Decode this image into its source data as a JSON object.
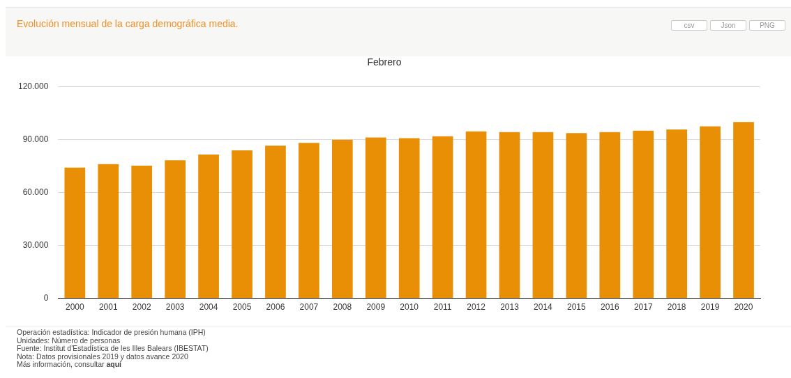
{
  "chart_data": {
    "type": "bar",
    "title": "Evolución mensual de la carga demográfica media.",
    "subtitle": "Febrero",
    "categories": [
      "2000",
      "2001",
      "2002",
      "2003",
      "2004",
      "2005",
      "2006",
      "2007",
      "2008",
      "2009",
      "2010",
      "2011",
      "2012",
      "2013",
      "2014",
      "2015",
      "2016",
      "2017",
      "2018",
      "2019",
      "2020"
    ],
    "values": [
      74200,
      76200,
      75300,
      78300,
      81600,
      84000,
      86600,
      88200,
      90000,
      91300,
      90900,
      92000,
      94700,
      94300,
      94300,
      93800,
      94300,
      95100,
      95800,
      97600,
      100100
    ],
    "color": "#e98f05",
    "ylim": [
      0,
      120000
    ],
    "yticks": [
      {
        "value": 0,
        "label": "0"
      },
      {
        "value": 30000,
        "label": "30.000"
      },
      {
        "value": 60000,
        "label": "60.000"
      },
      {
        "value": 90000,
        "label": "90.000"
      },
      {
        "value": 120000,
        "label": "120.000"
      }
    ],
    "grid": "y",
    "annotations": [
      "csv",
      "Json",
      "PNG",
      "Operación estadística: Indicador de presión humana (IPH)",
      "Unidades: Número de personas",
      "Fuente: Institut d'Estadística de les Illes Balears (IBESTAT)",
      "Nota: Datos provisionales 2019 y datos avance 2020",
      "Más información, consultar aquí"
    ]
  }
}
